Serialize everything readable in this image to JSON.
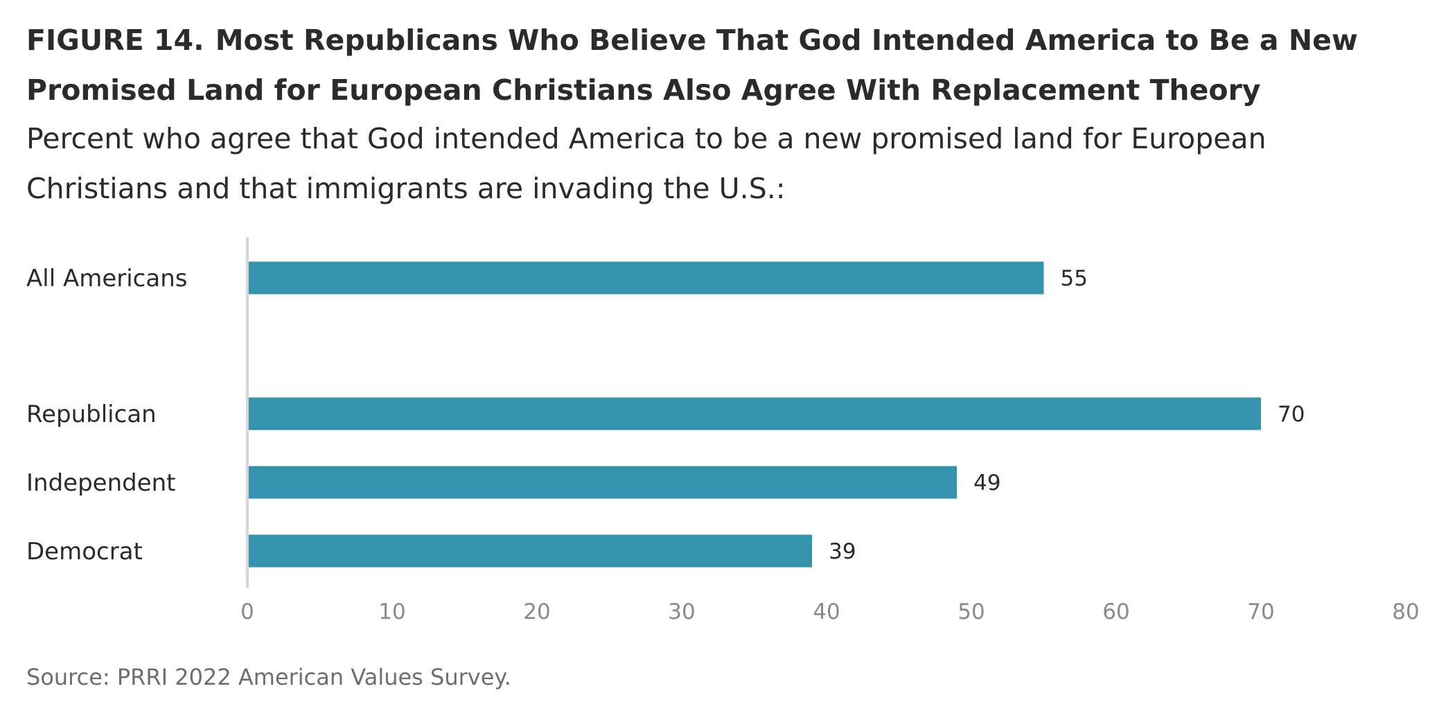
{
  "header": {
    "figure_label": "FIGURE 14.",
    "title": "Most Republicans Who Believe That God Intended America to Be a New Promised Land for European Christians Also Agree With Replacement Theory",
    "subtitle": "Percent who agree that God intended America to be a new promised land for European Christians and that immigrants are invading the U.S.:"
  },
  "chart_data": {
    "type": "bar",
    "orientation": "horizontal",
    "categories": [
      "All Americans",
      "Republican",
      "Independent",
      "Democrat"
    ],
    "values": [
      55,
      70,
      49,
      39
    ],
    "data_labels": [
      "55",
      "70",
      "49",
      "39"
    ],
    "xlim": [
      0,
      80
    ],
    "x_ticks": [
      0,
      10,
      20,
      30,
      40,
      50,
      60,
      70,
      80
    ],
    "grid": false,
    "bar_color": "#3593ae",
    "axis_line_color": "#d6d6d6",
    "tick_label_color": "#8a8a8a"
  },
  "footer": {
    "source": "Source: PRRI 2022 American Values Survey."
  }
}
